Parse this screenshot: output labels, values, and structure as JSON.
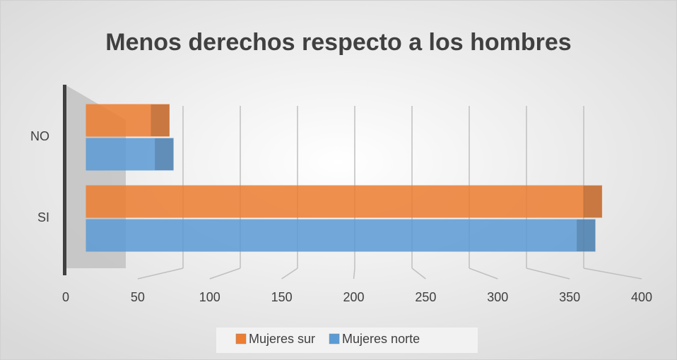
{
  "chart_data": {
    "type": "bar",
    "orientation": "horizontal",
    "title": "Menos derechos respecto a los hombres",
    "categories": [
      "NO",
      "SI"
    ],
    "series": [
      {
        "name": "Mujeres sur",
        "color": "#ed7d31",
        "values": [
          62,
          385
        ]
      },
      {
        "name": "Mujeres norte",
        "color": "#5b9bd5",
        "values": [
          65,
          380
        ]
      }
    ],
    "xlim": [
      0,
      400
    ],
    "xticks": [
      0,
      50,
      100,
      150,
      200,
      250,
      300,
      350,
      400
    ],
    "grid": true,
    "legend": "bottom"
  }
}
